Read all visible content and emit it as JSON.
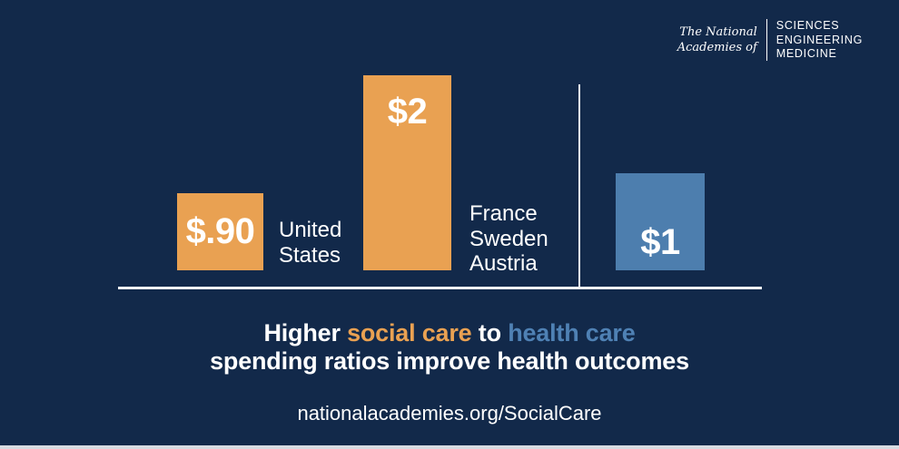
{
  "colors": {
    "background": "#12294A",
    "bar_orange": "#E9A152",
    "bar_blue": "#4D7EAE",
    "headline_orange": "#E9A152",
    "headline_blue": "#4F81B4",
    "axis_white": "#F4F5F6",
    "footer_strip": "#D7DBE1"
  },
  "logo": {
    "prefix_line1": "The National",
    "prefix_line2": "Academies of",
    "disciplines": [
      "SCIENCES",
      "ENGINEERING",
      "MEDICINE"
    ]
  },
  "chart_data": {
    "type": "bar",
    "title": "Higher social care to health care spending ratios improve health outcomes",
    "bars": [
      {
        "value": 0.9,
        "value_label": "$.90",
        "category_lines": [
          "United",
          "States"
        ],
        "color": "#E9A152"
      },
      {
        "value": 2.0,
        "value_label": "$2",
        "category_lines": [
          "France",
          "Sweden",
          "Austria"
        ],
        "color": "#E9A152"
      },
      {
        "value": 1.0,
        "value_label": "$1",
        "category_lines": [],
        "color": "#4D7EAE"
      }
    ],
    "baseline": "shown",
    "divider_line": "vertical white line separating orange bars from blue bar"
  },
  "headline": {
    "segments": [
      {
        "text": "Higher",
        "color": "#FFFFFF"
      },
      {
        "text": "social care",
        "color": "#E9A152"
      },
      {
        "text": "to",
        "color": "#FFFFFF"
      },
      {
        "text": "health care",
        "color": "#4F81B4"
      }
    ],
    "line2": "spending ratios improve health outcomes"
  },
  "footer": {
    "url": "nationalacademies.org/SocialCare"
  }
}
